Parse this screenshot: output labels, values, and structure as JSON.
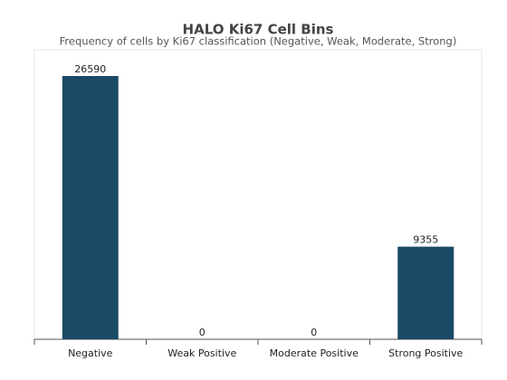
{
  "chart_data": {
    "type": "bar",
    "title": "HALO Ki67 Cell Bins",
    "subtitle": "Frequency of cells by Ki67 classification (Negative, Weak, Moderate, Strong)",
    "categories": [
      "Negative",
      "Weak Positive",
      "Moderate Positive",
      "Strong Positive"
    ],
    "values": [
      26590,
      0,
      0,
      9355
    ],
    "color": "#1b4a66"
  }
}
